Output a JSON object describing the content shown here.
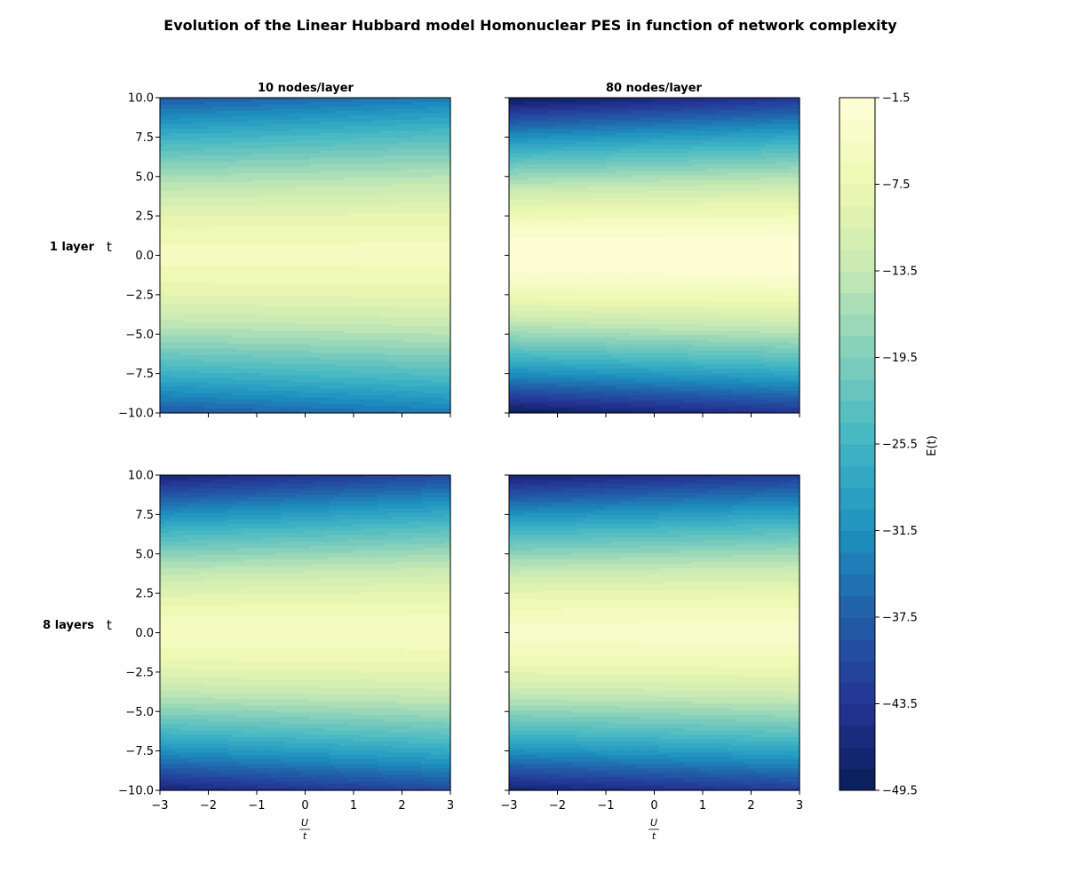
{
  "figure": {
    "title": "Evolution of the Linear Hubbard model Homonuclear PES in function of network complexity",
    "col_titles": [
      "10 nodes/layer",
      "80 nodes/layer"
    ],
    "row_labels": [
      "1 layer",
      "8 layers"
    ],
    "ylabel": "t",
    "xlabel": "U/t",
    "colorbar_label": "E(t)"
  },
  "chart_data": {
    "type": "heatmap",
    "subtype": "filled-contour",
    "grid": false,
    "colormap": "YlGnBu_r",
    "x": {
      "label": "U/t",
      "range": [
        -3,
        3
      ],
      "ticks": [
        -3,
        -2,
        -1,
        0,
        1,
        2,
        3
      ]
    },
    "y": {
      "label": "t",
      "range": [
        -10,
        10
      ],
      "ticks": [
        10.0,
        7.5,
        5.0,
        2.5,
        0.0,
        -2.5,
        -5.0,
        -7.5,
        -10.0
      ]
    },
    "colorbar": {
      "label": "E(t)",
      "range": [
        -49.5,
        -1.5
      ],
      "levels": 32,
      "ticks": [
        -1.5,
        -7.5,
        -13.5,
        -19.5,
        -25.5,
        -31.5,
        -37.5,
        -43.5,
        -49.5
      ]
    },
    "panels": [
      {
        "row": "1 layer",
        "col": "10 nodes/layer",
        "peak_energy": -5.5,
        "peak_t_at_left": 0.0,
        "peak_t_at_right": 0.0,
        "edge_energy_left": -38.5,
        "edge_energy_right": -34.0
      },
      {
        "row": "1 layer",
        "col": "80 nodes/layer",
        "peak_energy": -1.5,
        "peak_t_at_left": 0.0,
        "peak_t_at_right": 0.0,
        "edge_energy_left": -49.5,
        "edge_energy_right": -43.5
      },
      {
        "row": "8 layers",
        "col": "10 nodes/layer",
        "peak_energy": -5.0,
        "peak_t_at_left": 0.0,
        "peak_t_at_right": 0.0,
        "edge_energy_left": -47.0,
        "edge_energy_right": -40.5
      },
      {
        "row": "8 layers",
        "col": "80 nodes/layer",
        "peak_energy": -4.0,
        "peak_t_at_left": 0.0,
        "peak_t_at_right": 0.0,
        "edge_energy_left": -47.5,
        "edge_energy_right": -42.5
      }
    ]
  }
}
